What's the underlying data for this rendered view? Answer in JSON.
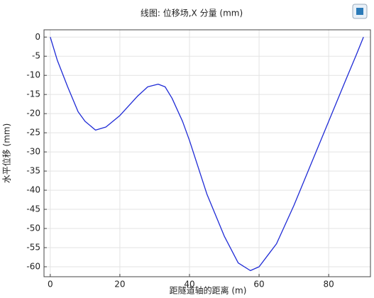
{
  "chart_data": {
    "type": "line",
    "title": "线图: 位移场,X 分量 (mm)",
    "x_label": "距隧道轴的距离 (m)",
    "y_label": "水平位移 (mm)",
    "x": [
      0,
      2,
      5,
      8,
      10,
      13,
      16,
      20,
      25,
      28,
      31,
      33,
      35,
      38,
      40,
      45,
      50,
      54,
      57.5,
      60,
      65,
      70,
      75,
      80,
      85,
      88,
      90
    ],
    "values": [
      0,
      -6,
      -13,
      -19.5,
      -22,
      -24.3,
      -23.5,
      -20.5,
      -15.5,
      -13,
      -12.3,
      -13,
      -16,
      -22,
      -27,
      -41,
      -52,
      -59,
      -61,
      -60,
      -54,
      -44,
      -33,
      -22,
      -11,
      -4.5,
      0
    ],
    "color": "#1f2bd6",
    "xlim": [
      -1.8,
      92
    ],
    "xticks": [
      0,
      20,
      40,
      60,
      80
    ],
    "ylim": [
      -62.6,
      1.9
    ],
    "yticks": [
      0,
      -5,
      -10,
      -15,
      -20,
      -25,
      -30,
      -35,
      -40,
      -45,
      -50,
      -55,
      -60
    ],
    "grid": true
  }
}
